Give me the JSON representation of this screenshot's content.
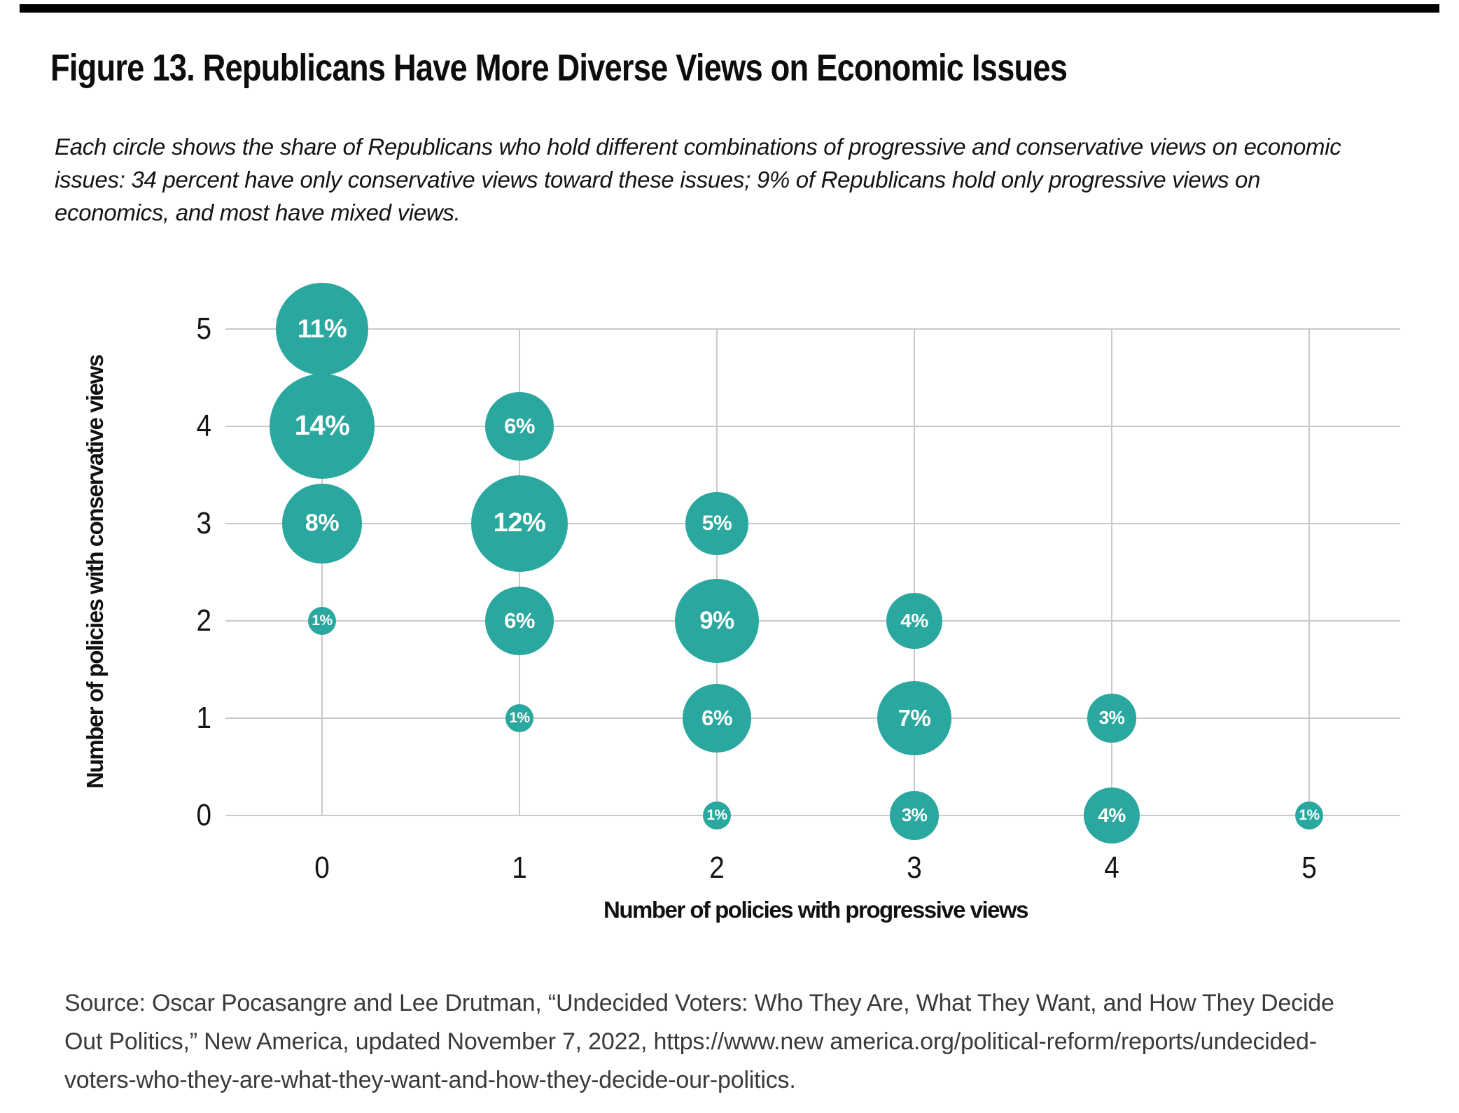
{
  "figure": {
    "title": "Figure 13. Republicans Have More Diverse Views on Economic Issues",
    "subtitle_lines": [
      "Each circle shows the share of Republicans who hold different combinations of progressive and conservative views on economic",
      "issues: 34 percent have only conservative views toward these issues; 9% of Republicans hold only progressive views on",
      "economics, and most have mixed views."
    ],
    "source_lines": [
      "Source: Oscar Pocasangre and Lee Drutman, “Undecided Voters: Who They Are, What They Want, and How They Decide",
      "Out Politics,” New America, updated November 7, 2022, https://www.new america.org/political-reform/reports/undecided-",
      "voters-who-they-are-what-they-want-and-how-they-decide-our-politics."
    ]
  },
  "colors": {
    "bubble_fill": "#2aa79e",
    "bubble_text": "#ffffff",
    "gridline": "#c9c9c9",
    "top_rule": "#000000"
  },
  "chart_data": {
    "type": "bubble",
    "title": "",
    "xlabel": "Number of policies with progressive views",
    "ylabel": "Number of policies with conservative views",
    "xlim": [
      0,
      5
    ],
    "ylim": [
      0,
      5
    ],
    "grid": true,
    "legend": false,
    "x_tick_labels": [
      "0",
      "1",
      "2",
      "3",
      "4",
      "5"
    ],
    "y_tick_labels_top_to_bottom": [
      "5",
      "4",
      "3",
      "2",
      "1",
      "0"
    ],
    "size_encoding": "circle area proportional to share of Republicans (percent)",
    "points": [
      {
        "x": 0,
        "y": 5,
        "value": 11,
        "label": "11%"
      },
      {
        "x": 0,
        "y": 4,
        "value": 14,
        "label": "14%"
      },
      {
        "x": 0,
        "y": 3,
        "value": 8,
        "label": "8%"
      },
      {
        "x": 0,
        "y": 2,
        "value": 1,
        "label": "1%"
      },
      {
        "x": 1,
        "y": 4,
        "value": 6,
        "label": "6%"
      },
      {
        "x": 1,
        "y": 3,
        "value": 12,
        "label": "12%"
      },
      {
        "x": 1,
        "y": 2,
        "value": 6,
        "label": "6%"
      },
      {
        "x": 1,
        "y": 1,
        "value": 1,
        "label": "1%"
      },
      {
        "x": 2,
        "y": 3,
        "value": 5,
        "label": "5%"
      },
      {
        "x": 2,
        "y": 2,
        "value": 9,
        "label": "9%"
      },
      {
        "x": 2,
        "y": 1,
        "value": 6,
        "label": "6%"
      },
      {
        "x": 2,
        "y": 0,
        "value": 1,
        "label": "1%"
      },
      {
        "x": 3,
        "y": 2,
        "value": 4,
        "label": "4%"
      },
      {
        "x": 3,
        "y": 1,
        "value": 7,
        "label": "7%"
      },
      {
        "x": 3,
        "y": 0,
        "value": 3,
        "label": "3%"
      },
      {
        "x": 4,
        "y": 1,
        "value": 3,
        "label": "3%"
      },
      {
        "x": 4,
        "y": 0,
        "value": 4,
        "label": "4%"
      },
      {
        "x": 5,
        "y": 0,
        "value": 1,
        "label": "1%"
      }
    ]
  }
}
